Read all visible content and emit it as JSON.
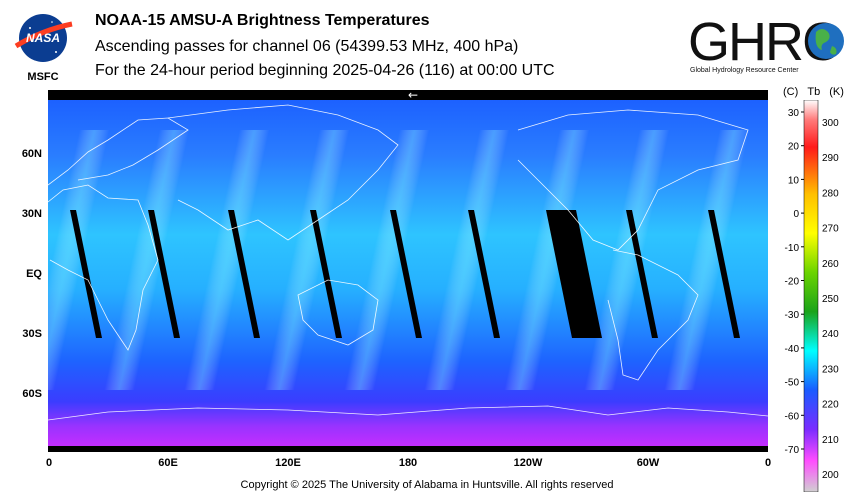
{
  "header": {
    "title": "NOAA-15 AMSU-A Brightness Temperatures",
    "subtitle_1": "Ascending passes for channel 06 (54399.53 MHz, 400 hPa)",
    "subtitle_2": "For the 24-hour period beginning 2025-04-26 (116) at 00:00 UTC"
  },
  "logos": {
    "nasa_text": "NASA",
    "msfc_text": "MSFC",
    "ghrc_text": "GHRC",
    "ghrc_caption": "Global Hydrology Resource Center"
  },
  "map": {
    "lat_labels": [
      "60N",
      "30N",
      "EQ",
      "30S",
      "60S"
    ],
    "lon_labels": [
      "0",
      "60E",
      "120E",
      "180",
      "120W",
      "60W",
      "0"
    ],
    "direction_arrow": "←",
    "colors": {
      "water_bright": "#2ec4ff",
      "water_dark": "#1b4dff",
      "polar": "#b040ff",
      "swath_gap": "#000000"
    }
  },
  "colorbar": {
    "header_c": "(C)",
    "header_tb": "Tb",
    "header_k": "(K)",
    "celsius_ticks": [
      "30",
      "20",
      "10",
      "0",
      "-10",
      "-20",
      "-30",
      "-40",
      "-50",
      "-60",
      "-70"
    ],
    "kelvin_ticks": [
      "300",
      "290",
      "280",
      "270",
      "260",
      "250",
      "240",
      "230",
      "220",
      "210",
      "200"
    ]
  },
  "footer": "Copyright © 2025 The University of Alabama in Huntsville.  All rights reserved"
}
